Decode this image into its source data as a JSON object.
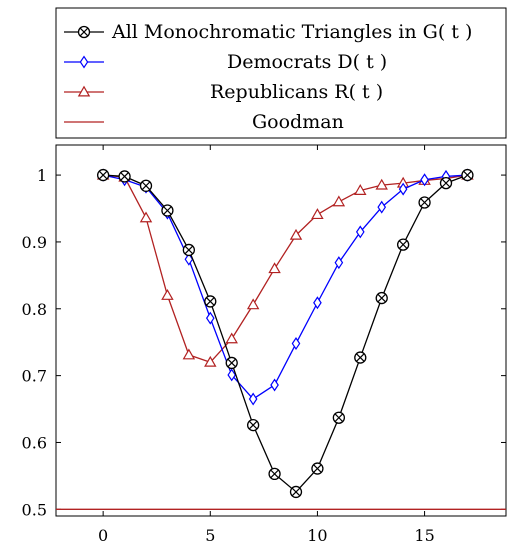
{
  "chart_data": {
    "type": "line",
    "title": "",
    "xlabel": "",
    "ylabel": "",
    "xlim": [
      -2.2,
      18.8
    ],
    "ylim": [
      0.49,
      1.045
    ],
    "xticks": [
      0,
      5,
      10,
      15
    ],
    "yticks": [
      0.5,
      0.6,
      0.7,
      0.8,
      0.9,
      1
    ],
    "xtick_labels": [
      "0",
      "5",
      "10",
      "15"
    ],
    "ytick_labels": [
      "0.5",
      "0.6",
      "0.7",
      "0.8",
      "0.9",
      "1"
    ],
    "grid": false,
    "legend_position": "top",
    "series": [
      {
        "name": "All Monochromatic Triangles in G( t )",
        "color": "#000000",
        "marker": "circle-x",
        "x": [
          0,
          1,
          2,
          3,
          4,
          5,
          6,
          7,
          8,
          9,
          10,
          11,
          12,
          13,
          14,
          15,
          16,
          17
        ],
        "y": [
          1.0,
          0.998,
          0.984,
          0.947,
          0.888,
          0.811,
          0.719,
          0.626,
          0.553,
          0.526,
          0.561,
          0.637,
          0.727,
          0.816,
          0.896,
          0.959,
          0.988,
          1.0
        ]
      },
      {
        "name": "Democrats D( t )",
        "color": "#0000ff",
        "marker": "diamond",
        "x": [
          0,
          1,
          2,
          3,
          4,
          5,
          6,
          7,
          8,
          9,
          10,
          11,
          12,
          13,
          14,
          15,
          16,
          17
        ],
        "y": [
          1.0,
          0.993,
          0.982,
          0.943,
          0.874,
          0.786,
          0.701,
          0.665,
          0.686,
          0.748,
          0.809,
          0.869,
          0.915,
          0.952,
          0.979,
          0.993,
          0.998,
          1.0
        ]
      },
      {
        "name": "Republicans R( t )",
        "color": "#b22222",
        "marker": "triangle",
        "x": [
          0,
          1,
          2,
          3,
          4,
          5,
          6,
          7,
          8,
          9,
          10,
          11,
          12,
          13,
          14,
          15,
          16,
          17
        ],
        "y": [
          1.0,
          0.997,
          0.936,
          0.82,
          0.731,
          0.72,
          0.755,
          0.806,
          0.86,
          0.91,
          0.941,
          0.96,
          0.977,
          0.985,
          0.988,
          0.992,
          0.995,
          1.0
        ]
      },
      {
        "name": "Goodman",
        "color": "#b22222",
        "marker": "none",
        "constant": 0.5
      }
    ]
  }
}
